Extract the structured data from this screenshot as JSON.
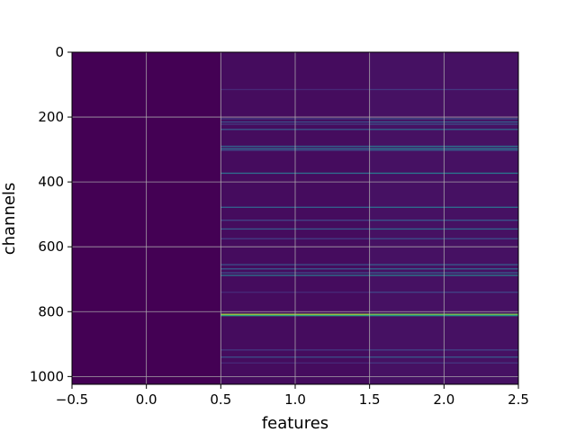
{
  "chart_data": {
    "type": "heatmap",
    "title": "",
    "xlabel": "features",
    "ylabel": "channels",
    "xlim": [
      -0.5,
      2.5
    ],
    "ylim": [
      1024,
      0
    ],
    "y_inverted": true,
    "grid": true,
    "colormap": "viridis",
    "x_ticks": [
      {
        "value": -0.5,
        "label": "−0.5"
      },
      {
        "value": 0.0,
        "label": "0.0"
      },
      {
        "value": 0.5,
        "label": "0.5"
      },
      {
        "value": 1.0,
        "label": "1.0"
      },
      {
        "value": 1.5,
        "label": "1.5"
      },
      {
        "value": 2.0,
        "label": "2.0"
      },
      {
        "value": 2.5,
        "label": "2.5"
      }
    ],
    "y_ticks": [
      {
        "value": 0,
        "label": "0"
      },
      {
        "value": 200,
        "label": "200"
      },
      {
        "value": 400,
        "label": "400"
      },
      {
        "value": 600,
        "label": "600"
      },
      {
        "value": 800,
        "label": "800"
      },
      {
        "value": 1000,
        "label": "1000"
      }
    ],
    "columns": [
      0,
      1,
      2
    ],
    "background_level": [
      0.0,
      0.04,
      0.06
    ],
    "bright_rows": [
      {
        "channel": 115,
        "levels": [
          0.0,
          0.14,
          0.2
        ]
      },
      {
        "channel": 205,
        "levels": [
          0.0,
          0.22,
          0.3
        ]
      },
      {
        "channel": 215,
        "levels": [
          0.0,
          0.3,
          0.38
        ]
      },
      {
        "channel": 222,
        "levels": [
          0.0,
          0.2,
          0.28
        ]
      },
      {
        "channel": 238,
        "levels": [
          0.0,
          0.35,
          0.42
        ]
      },
      {
        "channel": 290,
        "levels": [
          0.0,
          0.4,
          0.48
        ]
      },
      {
        "channel": 297,
        "levels": [
          0.0,
          0.45,
          0.52
        ]
      },
      {
        "channel": 302,
        "levels": [
          0.0,
          0.3,
          0.38
        ]
      },
      {
        "channel": 373,
        "levels": [
          0.0,
          0.45,
          0.5
        ]
      },
      {
        "channel": 478,
        "levels": [
          0.0,
          0.4,
          0.46
        ]
      },
      {
        "channel": 518,
        "levels": [
          0.0,
          0.25,
          0.35
        ]
      },
      {
        "channel": 545,
        "levels": [
          0.0,
          0.35,
          0.42
        ]
      },
      {
        "channel": 575,
        "levels": [
          0.0,
          0.22,
          0.3
        ]
      },
      {
        "channel": 655,
        "levels": [
          0.0,
          0.3,
          0.36
        ]
      },
      {
        "channel": 668,
        "levels": [
          0.0,
          0.35,
          0.42
        ]
      },
      {
        "channel": 680,
        "levels": [
          0.0,
          0.3,
          0.38
        ]
      },
      {
        "channel": 688,
        "levels": [
          0.0,
          0.5,
          0.55
        ]
      },
      {
        "channel": 740,
        "levels": [
          0.0,
          0.15,
          0.25
        ]
      },
      {
        "channel": 808,
        "levels": [
          0.0,
          0.9,
          0.85
        ]
      },
      {
        "channel": 812,
        "levels": [
          0.0,
          0.7,
          0.65
        ]
      },
      {
        "channel": 918,
        "levels": [
          0.0,
          0.2,
          0.25
        ]
      },
      {
        "channel": 940,
        "levels": [
          0.0,
          0.3,
          0.35
        ]
      },
      {
        "channel": 958,
        "levels": [
          0.0,
          0.15,
          0.2
        ]
      }
    ]
  }
}
